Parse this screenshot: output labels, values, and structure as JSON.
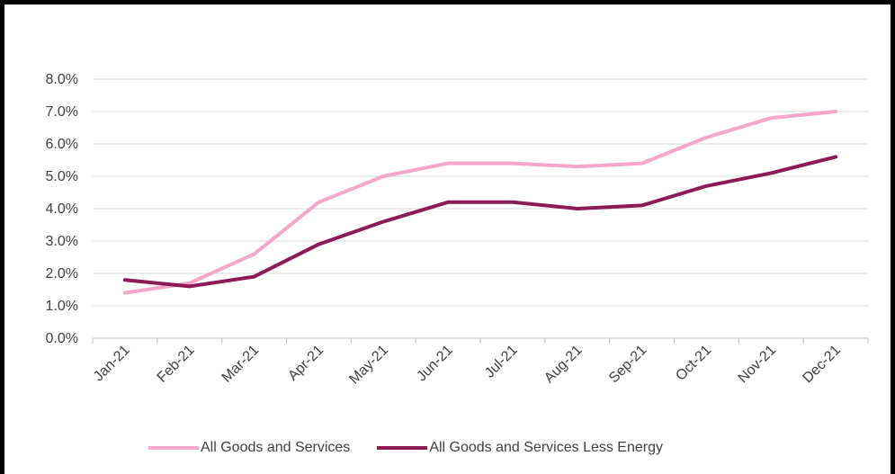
{
  "chart_data": {
    "type": "line",
    "categories": [
      "Jan-21",
      "Feb-21",
      "Mar-21",
      "Apr-21",
      "May-21",
      "Jun-21",
      "Jul-21",
      "Aug-21",
      "Sep-21",
      "Oct-21",
      "Nov-21",
      "Dec-21"
    ],
    "ylim": [
      0,
      8
    ],
    "yticks": [
      "0.0%",
      "1.0%",
      "2.0%",
      "3.0%",
      "4.0%",
      "5.0%",
      "6.0%",
      "7.0%",
      "8.0%"
    ],
    "grid": true,
    "legend_position": "bottom",
    "series": [
      {
        "name": "All Goods and Services",
        "color": "#f4a7c8",
        "values": [
          1.4,
          1.7,
          2.6,
          4.2,
          5.0,
          5.4,
          5.4,
          5.3,
          5.4,
          6.2,
          6.8,
          7.0
        ]
      },
      {
        "name": "All Goods and Services Less Energy",
        "color": "#8b1a57",
        "values": [
          1.8,
          1.6,
          1.9,
          2.9,
          3.6,
          4.2,
          4.2,
          4.0,
          4.1,
          4.7,
          5.1,
          5.6
        ]
      }
    ]
  }
}
